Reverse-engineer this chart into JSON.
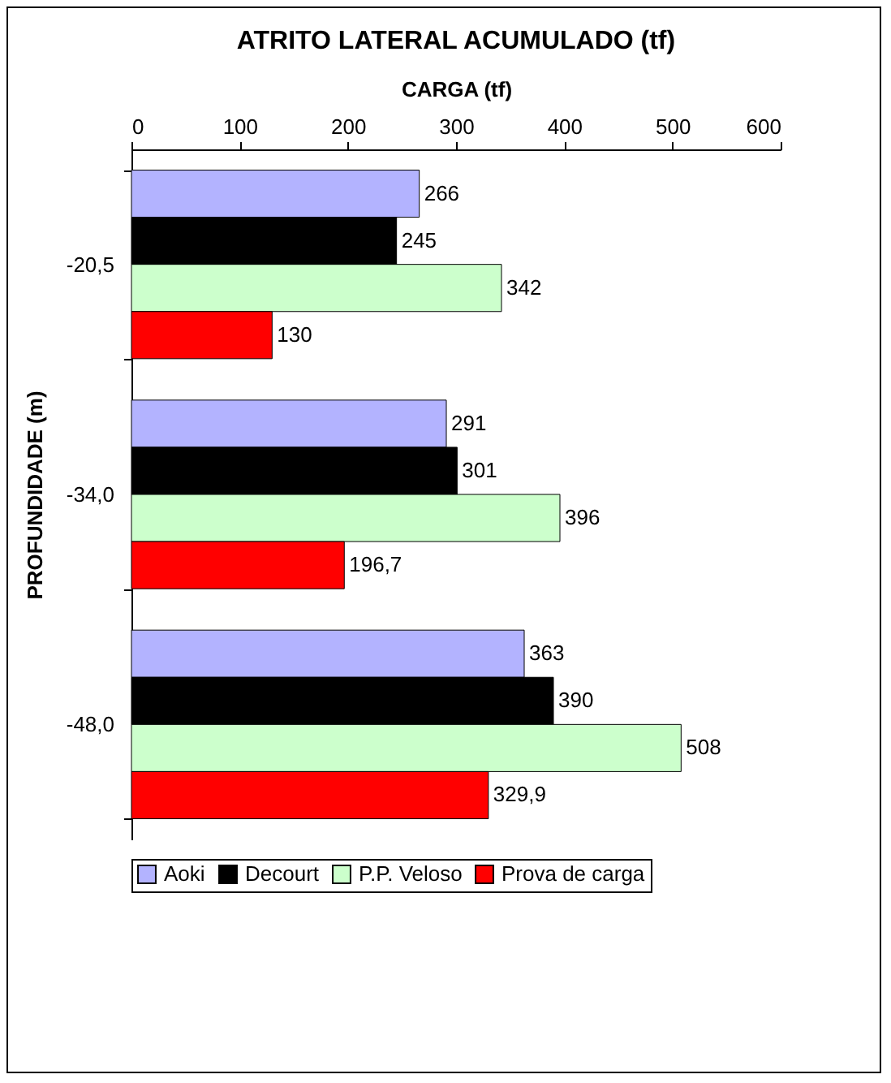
{
  "chart_data": {
    "type": "bar",
    "orientation": "horizontal",
    "title": "ATRITO LATERAL ACUMULADO (tf)",
    "xlabel": "CARGA (tf)",
    "ylabel": "PROFUNDIDADE (m)",
    "categories": [
      "-20,5",
      "-34,0",
      "-48,0"
    ],
    "series": [
      {
        "name": "Aoki",
        "color": "#b3b3ff",
        "values": [
          266,
          291,
          363
        ],
        "value_labels": [
          "266",
          "291",
          "363"
        ]
      },
      {
        "name": "Decourt",
        "color": "#000000",
        "values": [
          245,
          301,
          390
        ],
        "value_labels": [
          "245",
          "301",
          "390"
        ]
      },
      {
        "name": "P.P. Veloso",
        "color": "#ccffcc",
        "values": [
          342,
          396,
          508
        ],
        "value_labels": [
          "342",
          "396",
          "508"
        ]
      },
      {
        "name": "Prova de carga",
        "color": "#ff0000",
        "values": [
          130,
          196.7,
          329.9
        ],
        "value_labels": [
          "130",
          "196,7",
          "329,9"
        ]
      }
    ],
    "xlim": [
      0,
      600
    ],
    "xticks": [
      0,
      100,
      200,
      300,
      400,
      500,
      600
    ],
    "grid": false,
    "legend": "bottom"
  }
}
